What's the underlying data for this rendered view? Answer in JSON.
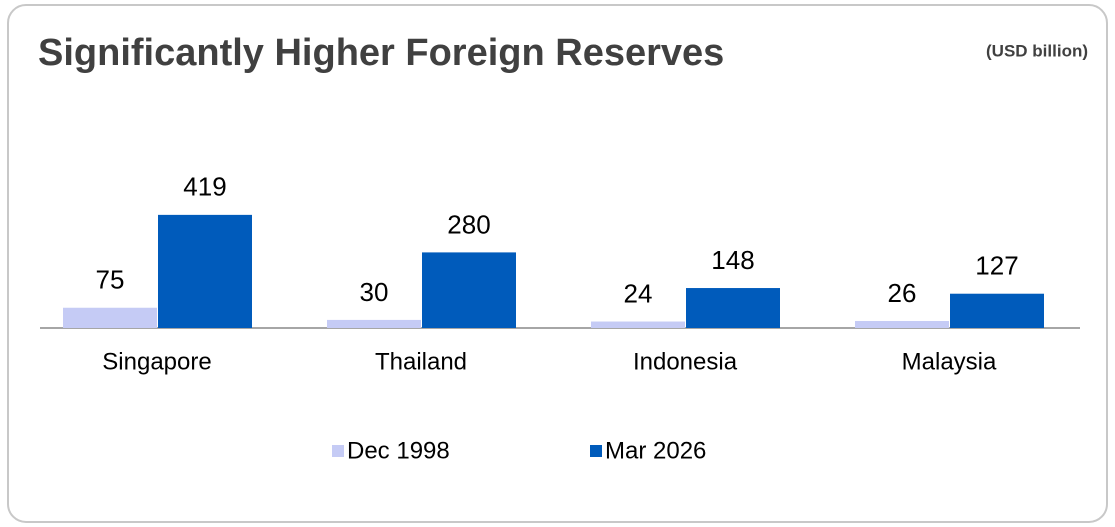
{
  "chart_data": {
    "type": "bar",
    "title": "Significantly Higher Foreign Reserves",
    "subtitle": "(USD billion)",
    "categories": [
      "Singapore",
      "Thailand",
      "Indonesia",
      "Malaysia"
    ],
    "series": [
      {
        "name": "Dec 1998",
        "color": "#c5cbf5",
        "values": [
          75,
          30,
          24,
          26
        ]
      },
      {
        "name": "Mar 2026",
        "color": "#005bbb",
        "values": [
          419,
          280,
          148,
          127
        ]
      }
    ],
    "legend": "bottom"
  }
}
